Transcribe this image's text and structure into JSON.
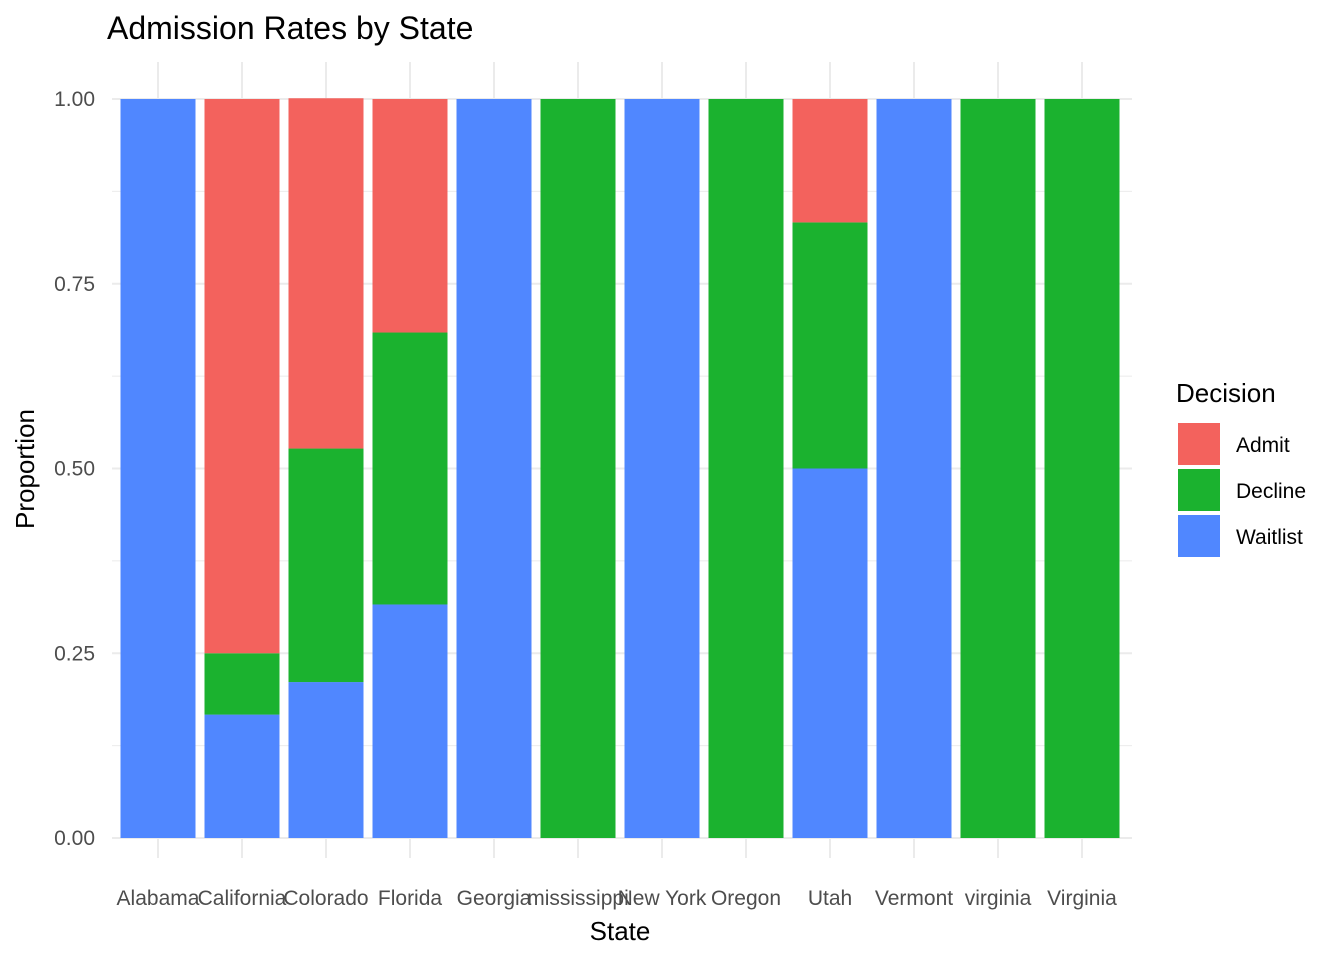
{
  "chart_data": {
    "type": "bar",
    "stacked": true,
    "title": "Admission Rates by State",
    "xlabel": "State",
    "ylabel": "Proportion",
    "ylim": [
      0,
      1
    ],
    "yticks": [
      "0.00",
      "0.25",
      "0.50",
      "0.75",
      "1.00"
    ],
    "ytick_values": [
      0,
      0.25,
      0.5,
      0.75,
      1.0
    ],
    "grid": true,
    "legend_placement": "right",
    "categories": [
      "Alabama",
      "California",
      "Colorado",
      "Florida",
      "Georgia",
      "mississippi",
      "New York",
      "Oregon",
      "Utah",
      "Vermont",
      "virginia",
      "Virginia"
    ],
    "legend_title": "Decision",
    "series": [
      {
        "name": "Waitlist",
        "color": "#5087ff",
        "values": [
          1.0,
          0.167,
          0.211,
          0.316,
          1.0,
          0.0,
          1.0,
          0.0,
          0.5,
          1.0,
          0.0,
          0.0
        ]
      },
      {
        "name": "Decline",
        "color": "#1bb22f",
        "values": [
          0.0,
          0.083,
          0.316,
          0.368,
          0.0,
          1.0,
          0.0,
          1.0,
          0.333,
          0.0,
          1.0,
          1.0
        ]
      },
      {
        "name": "Admit",
        "color": "#f3625d",
        "values": [
          0.0,
          0.75,
          0.474,
          0.316,
          0.0,
          0.0,
          0.0,
          0.0,
          0.167,
          0.0,
          0.0,
          0.0
        ]
      }
    ],
    "legend_order": [
      "Admit",
      "Decline",
      "Waitlist"
    ]
  }
}
